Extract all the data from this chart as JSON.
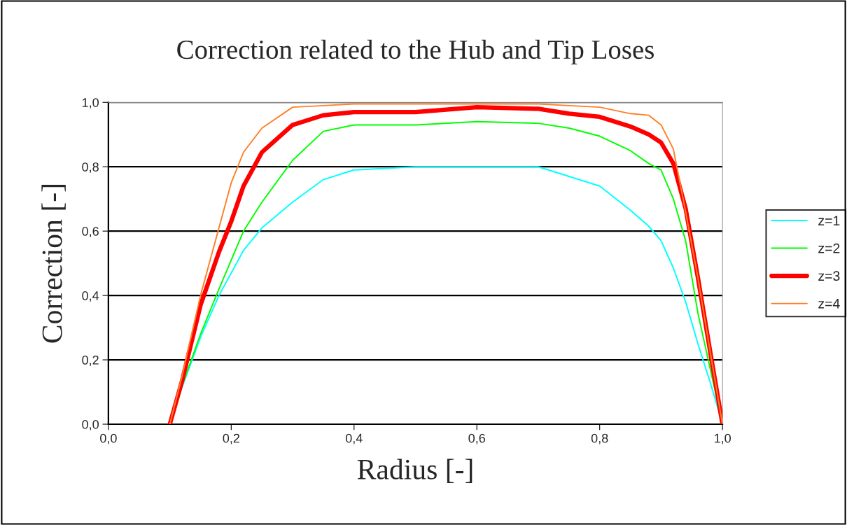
{
  "chart_data": {
    "type": "line",
    "title": "Correction related to the Hub and Tip Loses",
    "xlabel": "Radius [-]",
    "ylabel": "Correction [-]",
    "x": [
      0.1,
      0.12,
      0.15,
      0.18,
      0.2,
      0.22,
      0.25,
      0.3,
      0.35,
      0.4,
      0.5,
      0.6,
      0.7,
      0.75,
      0.8,
      0.85,
      0.88,
      0.9,
      0.92,
      0.94,
      0.96,
      0.98,
      1.0
    ],
    "series": [
      {
        "name": "z=1",
        "color": "#00ffff",
        "values": [
          0,
          0.115,
          0.27,
          0.4,
          0.47,
          0.54,
          0.61,
          0.69,
          0.76,
          0.79,
          0.8,
          0.8,
          0.8,
          0.77,
          0.74,
          0.665,
          0.615,
          0.57,
          0.485,
          0.38,
          0.25,
          0.13,
          0
        ]
      },
      {
        "name": "z=2",
        "color": "#00ff00",
        "values": [
          0,
          0.12,
          0.28,
          0.42,
          0.51,
          0.6,
          0.69,
          0.82,
          0.91,
          0.93,
          0.93,
          0.94,
          0.935,
          0.92,
          0.895,
          0.85,
          0.81,
          0.79,
          0.7,
          0.57,
          0.345,
          null,
          0
        ]
      },
      {
        "name": "z=3",
        "color": "#ff0000",
        "values": [
          0,
          0.135,
          0.37,
          0.535,
          0.63,
          0.74,
          0.845,
          0.93,
          0.96,
          0.97,
          0.97,
          0.985,
          0.98,
          0.965,
          0.955,
          0.925,
          0.9,
          0.875,
          0.81,
          0.67,
          0.455,
          0.225,
          0
        ]
      },
      {
        "name": "z=4",
        "color": "#ff7f27",
        "values": [
          0,
          0.15,
          0.4,
          0.61,
          0.75,
          0.845,
          0.92,
          0.985,
          0.99,
          0.995,
          0.995,
          0.995,
          0.995,
          0.99,
          0.985,
          0.965,
          0.96,
          0.93,
          0.855,
          0.66,
          0.455,
          0.225,
          0
        ]
      }
    ],
    "xlim": [
      0,
      1
    ],
    "ylim": [
      0,
      1
    ],
    "xticks": [
      {
        "value": 0,
        "label": "0,0"
      },
      {
        "value": 0.2,
        "label": "0,2"
      },
      {
        "value": 0.4,
        "label": "0,4"
      },
      {
        "value": 0.6,
        "label": "0,6"
      },
      {
        "value": 0.8,
        "label": "0,8"
      },
      {
        "value": 1,
        "label": "1,0"
      }
    ],
    "yticks": [
      {
        "value": 0,
        "label": "0,0"
      },
      {
        "value": 0.2,
        "label": "0,2"
      },
      {
        "value": 0.4,
        "label": "0,4"
      },
      {
        "value": 0.6,
        "label": "0,6"
      },
      {
        "value": 0.8,
        "label": "0,8"
      },
      {
        "value": 1,
        "label": "1,0"
      }
    ],
    "grid": "y",
    "legend": "right",
    "marker": "none",
    "line_style": "solid"
  }
}
